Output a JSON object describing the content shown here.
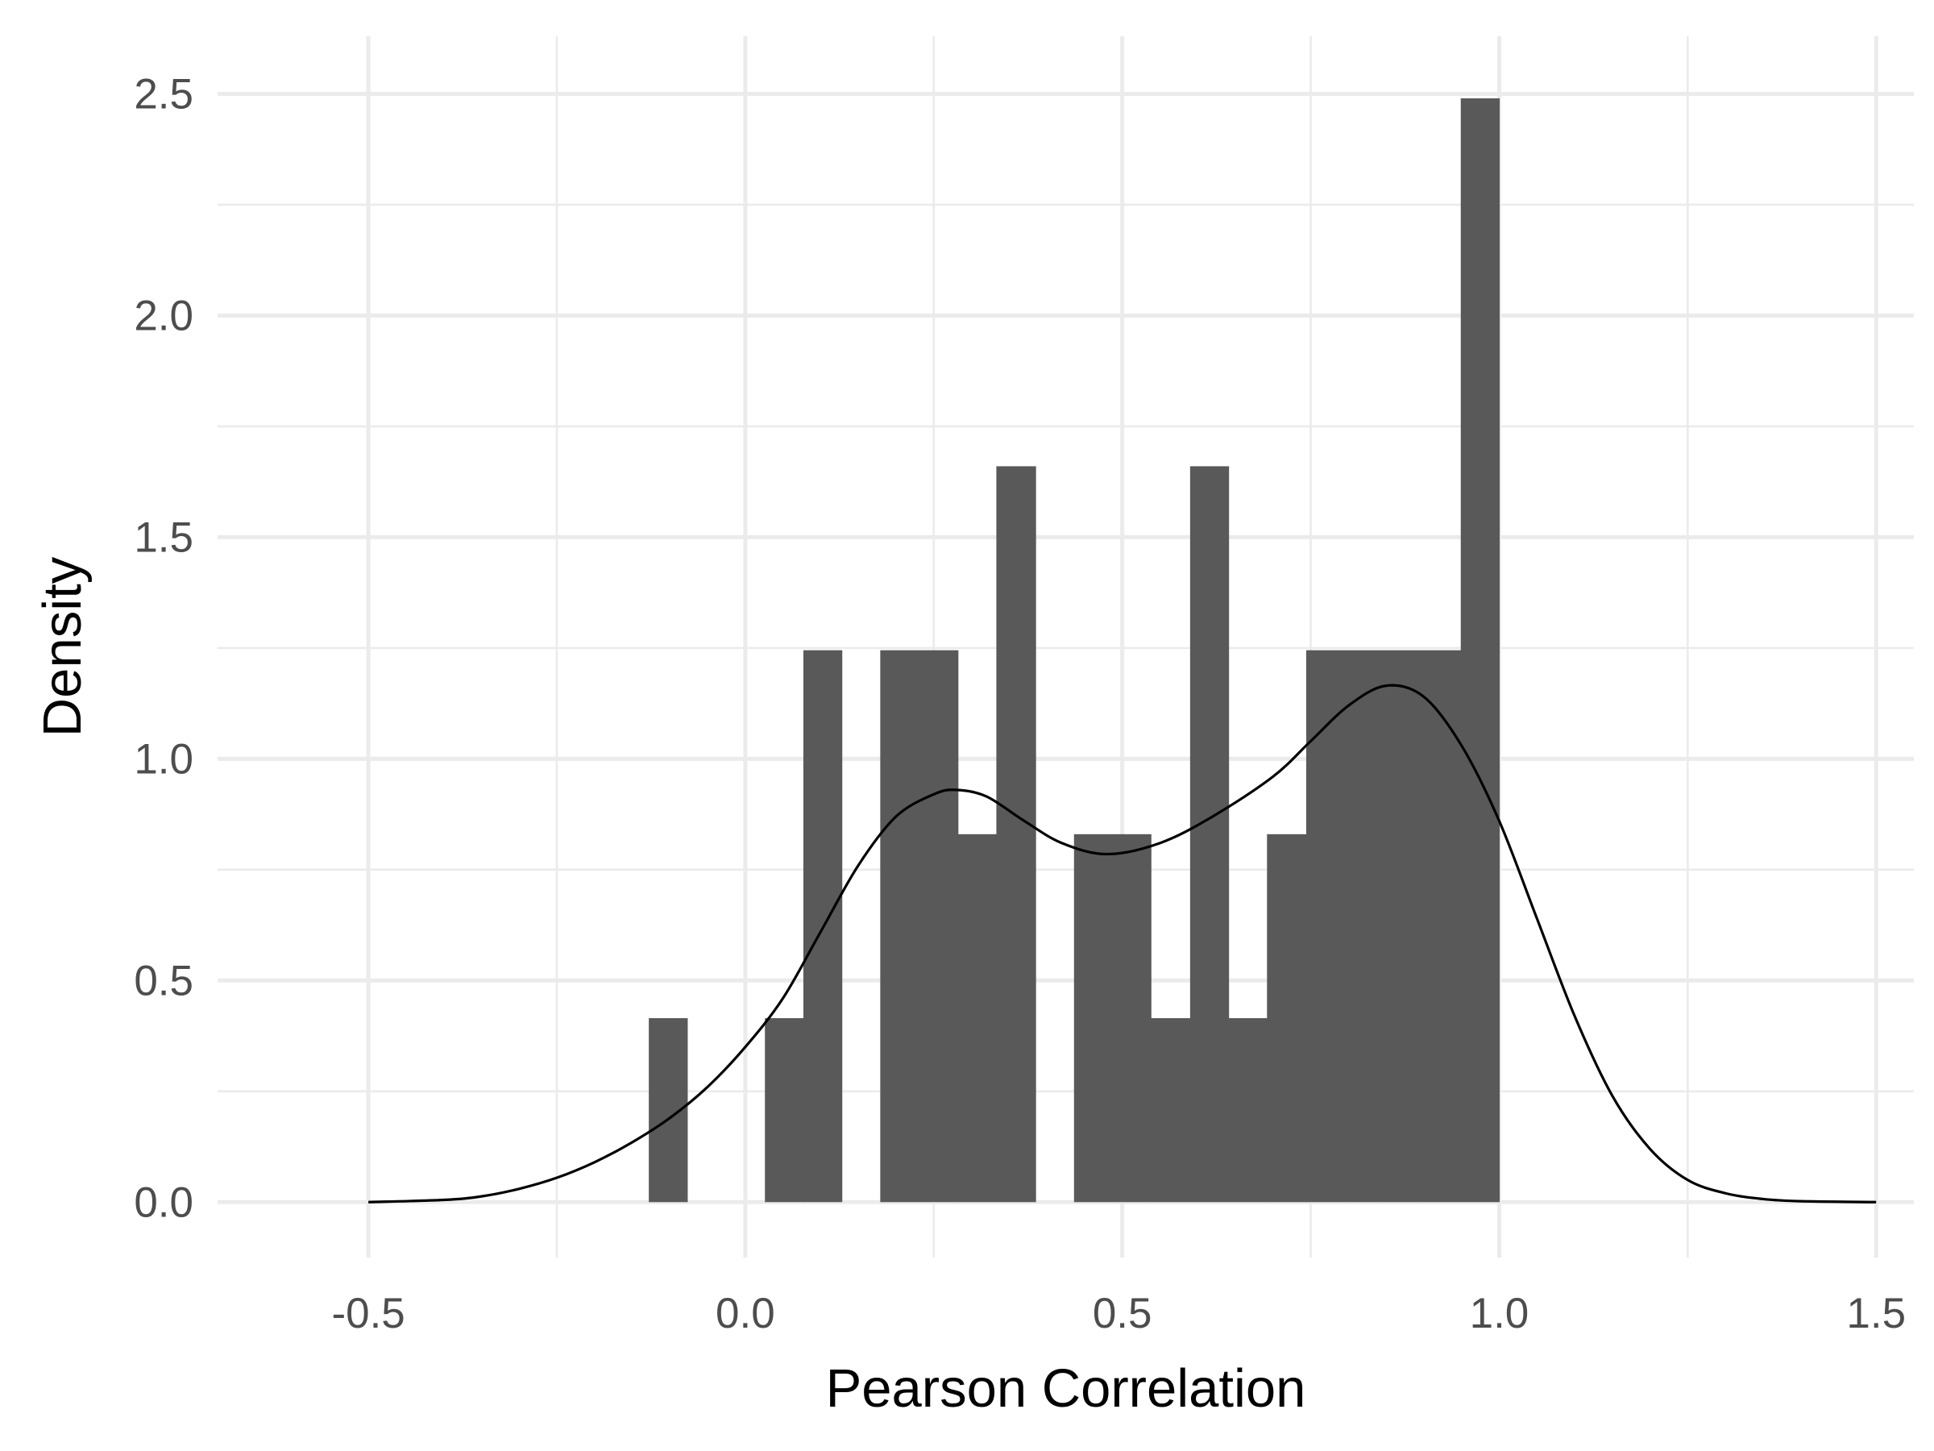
{
  "chart_data": {
    "type": "histogram",
    "title": "",
    "xlabel": "Pearson Correlation",
    "ylabel": "Density",
    "xlim": [
      -0.7,
      1.55
    ],
    "ylim": [
      -0.125,
      2.63
    ],
    "x_ticks": [
      {
        "value": -0.5,
        "label": "-0.5"
      },
      {
        "value": 0.0,
        "label": "0.0"
      },
      {
        "value": 0.5,
        "label": "0.5"
      },
      {
        "value": 1.0,
        "label": "1.0"
      },
      {
        "value": 1.5,
        "label": "1.5"
      }
    ],
    "y_ticks": [
      {
        "value": 0.0,
        "label": "0.0"
      },
      {
        "value": 0.5,
        "label": "0.5"
      },
      {
        "value": 1.0,
        "label": "1.0"
      },
      {
        "value": 1.5,
        "label": "1.5"
      },
      {
        "value": 2.0,
        "label": "2.0"
      },
      {
        "value": 2.5,
        "label": "2.5"
      }
    ],
    "grid": true,
    "bin_width": 0.0513,
    "bins": [
      {
        "x0": -0.128,
        "x1": -0.077,
        "density": 0.415
      },
      {
        "x0": -0.077,
        "x1": -0.026,
        "density": 0.0
      },
      {
        "x0": -0.026,
        "x1": 0.026,
        "density": 0.0
      },
      {
        "x0": 0.026,
        "x1": 0.077,
        "density": 0.415
      },
      {
        "x0": 0.077,
        "x1": 0.128,
        "density": 1.245
      },
      {
        "x0": 0.128,
        "x1": 0.179,
        "density": 0.0
      },
      {
        "x0": 0.179,
        "x1": 0.231,
        "density": 1.245
      },
      {
        "x0": 0.231,
        "x1": 0.282,
        "density": 1.245
      },
      {
        "x0": 0.282,
        "x1": 0.333,
        "density": 0.83
      },
      {
        "x0": 0.333,
        "x1": 0.385,
        "density": 1.66
      },
      {
        "x0": 0.385,
        "x1": 0.436,
        "density": 0.0
      },
      {
        "x0": 0.436,
        "x1": 0.487,
        "density": 0.83
      },
      {
        "x0": 0.487,
        "x1": 0.538,
        "density": 0.83
      },
      {
        "x0": 0.538,
        "x1": 0.59,
        "density": 0.415
      },
      {
        "x0": 0.59,
        "x1": 0.641,
        "density": 1.66
      },
      {
        "x0": 0.641,
        "x1": 0.692,
        "density": 0.415
      },
      {
        "x0": 0.692,
        "x1": 0.744,
        "density": 0.83
      },
      {
        "x0": 0.744,
        "x1": 0.795,
        "density": 1.245
      },
      {
        "x0": 0.795,
        "x1": 0.846,
        "density": 1.245
      },
      {
        "x0": 0.846,
        "x1": 0.897,
        "density": 1.245
      },
      {
        "x0": 0.897,
        "x1": 0.949,
        "density": 1.245
      },
      {
        "x0": 0.949,
        "x1": 1.0,
        "density": 2.49
      }
    ],
    "density_curve": [
      {
        "x": -0.5,
        "y": 0.0
      },
      {
        "x": -0.4,
        "y": 0.005
      },
      {
        "x": -0.35,
        "y": 0.013
      },
      {
        "x": -0.3,
        "y": 0.03
      },
      {
        "x": -0.25,
        "y": 0.055
      },
      {
        "x": -0.2,
        "y": 0.09
      },
      {
        "x": -0.15,
        "y": 0.135
      },
      {
        "x": -0.1,
        "y": 0.19
      },
      {
        "x": -0.05,
        "y": 0.26
      },
      {
        "x": 0.0,
        "y": 0.35
      },
      {
        "x": 0.05,
        "y": 0.46
      },
      {
        "x": 0.1,
        "y": 0.61
      },
      {
        "x": 0.15,
        "y": 0.76
      },
      {
        "x": 0.2,
        "y": 0.87
      },
      {
        "x": 0.25,
        "y": 0.92
      },
      {
        "x": 0.28,
        "y": 0.93
      },
      {
        "x": 0.32,
        "y": 0.915
      },
      {
        "x": 0.37,
        "y": 0.86
      },
      {
        "x": 0.42,
        "y": 0.81
      },
      {
        "x": 0.48,
        "y": 0.785
      },
      {
        "x": 0.55,
        "y": 0.81
      },
      {
        "x": 0.62,
        "y": 0.87
      },
      {
        "x": 0.7,
        "y": 0.96
      },
      {
        "x": 0.75,
        "y": 1.04
      },
      {
        "x": 0.8,
        "y": 1.12
      },
      {
        "x": 0.85,
        "y": 1.165
      },
      {
        "x": 0.9,
        "y": 1.14
      },
      {
        "x": 0.95,
        "y": 1.03
      },
      {
        "x": 1.0,
        "y": 0.86
      },
      {
        "x": 1.05,
        "y": 0.64
      },
      {
        "x": 1.1,
        "y": 0.42
      },
      {
        "x": 1.15,
        "y": 0.24
      },
      {
        "x": 1.2,
        "y": 0.12
      },
      {
        "x": 1.25,
        "y": 0.05
      },
      {
        "x": 1.3,
        "y": 0.02
      },
      {
        "x": 1.35,
        "y": 0.007
      },
      {
        "x": 1.4,
        "y": 0.002
      },
      {
        "x": 1.5,
        "y": 0.0
      }
    ],
    "colors": {
      "bar_fill": "#595959",
      "line": "#000000",
      "grid": "#ebebeb",
      "tick_text": "#4d4d4d",
      "axis_title": "#000000",
      "background": "#ffffff"
    }
  }
}
